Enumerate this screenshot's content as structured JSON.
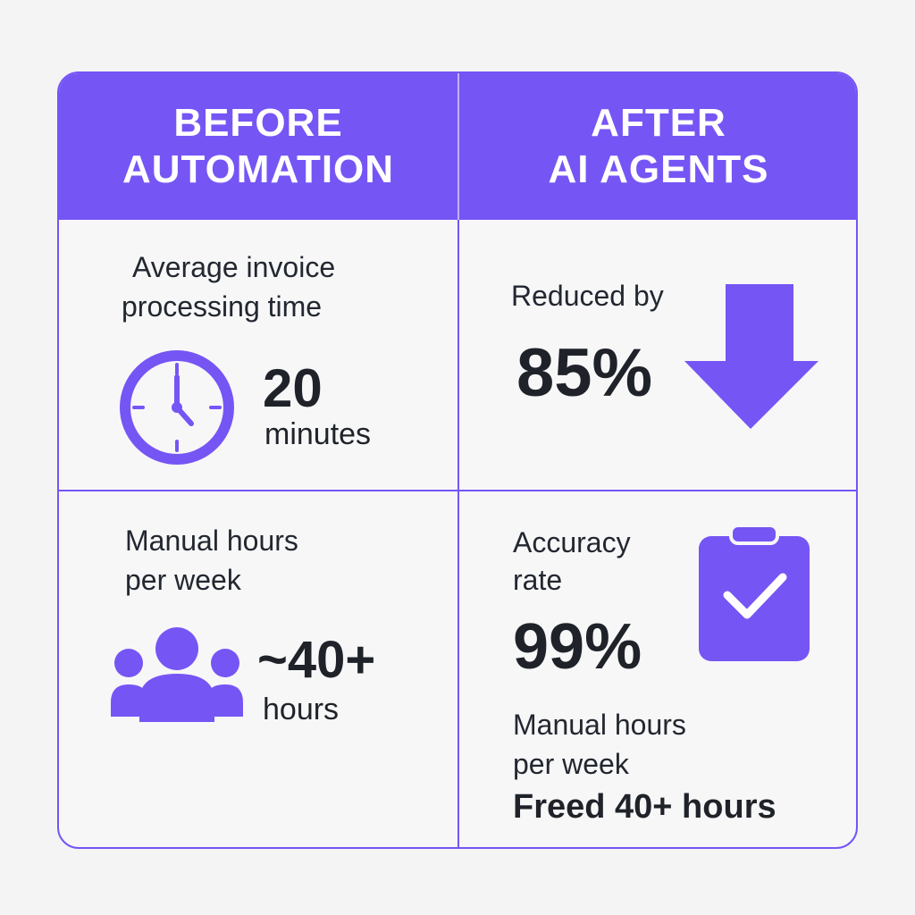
{
  "header": {
    "before_line1": "BEFORE",
    "before_line2": "AUTOMATION",
    "after_line1": "AFTER",
    "after_line2": "AI AGENTS"
  },
  "before": {
    "time_label_line1": "Average invoice",
    "time_label_line2": "processing time",
    "time_value": "20",
    "time_unit": "minutes",
    "hours_label_line1": "Manual hours",
    "hours_label_line2": "per week",
    "hours_value": "~40+",
    "hours_unit": "hours"
  },
  "after": {
    "reduced_label": "Reduced by",
    "reduced_value": "85%",
    "accuracy_label_line1": "Accuracy",
    "accuracy_label_line2": "rate",
    "accuracy_value": "99%",
    "hours_label_line1": "Manual hours",
    "hours_label_line2": "per week",
    "freed_text": "Freed 40+ hours"
  },
  "icons": {
    "clock": "clock-icon",
    "down_arrow": "down-arrow-icon",
    "people": "people-icon",
    "clipboard": "clipboard-check-icon"
  },
  "colors": {
    "accent": "#7655f5",
    "text": "#1f2329",
    "background": "#f4f4f5"
  }
}
